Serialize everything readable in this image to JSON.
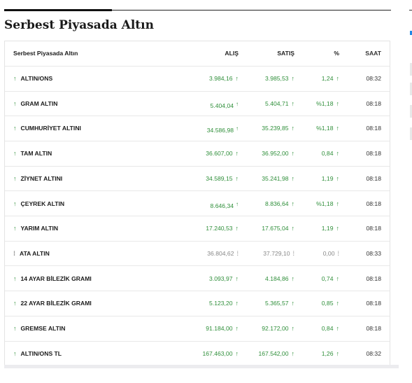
{
  "section_title": "Serbest Piyasada Altın",
  "table": {
    "headers": {
      "name": "Serbest Piyasada Altın",
      "buy": "ALIŞ",
      "sell": "SATIŞ",
      "pct": "%",
      "time": "SAAT"
    },
    "colors": {
      "up": "#2f8f3a",
      "neutral": "#888888"
    },
    "rows": [
      {
        "name": "ALTIN/ONS",
        "buy": "3.984,16",
        "sell": "3.985,53",
        "pct": "1,24",
        "time": "08:32",
        "trend": "up"
      },
      {
        "name": "GRAM ALTIN",
        "buy": "5.404,04",
        "sell": "5.404,71",
        "pct": "%1,18",
        "time": "08:18",
        "trend": "up"
      },
      {
        "name": "CUMHURİYET ALTINI",
        "buy": "34.586,98",
        "sell": "35.239,85",
        "pct": "%1,18",
        "time": "08:18",
        "trend": "up"
      },
      {
        "name": "TAM ALTIN",
        "buy": "36.607,00",
        "sell": "36.952,00",
        "pct": "0,84",
        "time": "08:18",
        "trend": "up"
      },
      {
        "name": "ZİYNET ALTINI",
        "buy": "34.589,15",
        "sell": "35.241,98",
        "pct": "1,19",
        "time": "08:18",
        "trend": "up"
      },
      {
        "name": "ÇEYREK ALTIN",
        "buy": "8.646,34",
        "sell": "8.836,64",
        "pct": "%1,18",
        "time": "08:18",
        "trend": "up"
      },
      {
        "name": "YARIM ALTIN",
        "buy": "17.240,53",
        "sell": "17.675,04",
        "pct": "1,19",
        "time": "08:18",
        "trend": "up"
      },
      {
        "name": "ATA ALTIN",
        "buy": "36.804,62",
        "sell": "37.729,10",
        "pct": "0,00",
        "time": "08:33",
        "trend": "neutral"
      },
      {
        "name": "14 AYAR BİLEZİK GRAMI",
        "buy": "3.093,97",
        "sell": "4.184,86",
        "pct": "0,74",
        "time": "08:18",
        "trend": "up"
      },
      {
        "name": "22 AYAR BİLEZİK GRAMI",
        "buy": "5.123,20",
        "sell": "5.365,57",
        "pct": "0,85",
        "time": "08:18",
        "trend": "up"
      },
      {
        "name": "GREMSE ALTIN",
        "buy": "91.184,00",
        "sell": "92.172,00",
        "pct": "0,84",
        "time": "08:18",
        "trend": "up"
      },
      {
        "name": "ALTIN/ONS TL",
        "buy": "167.463,00",
        "sell": "167.542,00",
        "pct": "1,26",
        "time": "08:32",
        "trend": "up"
      }
    ]
  }
}
